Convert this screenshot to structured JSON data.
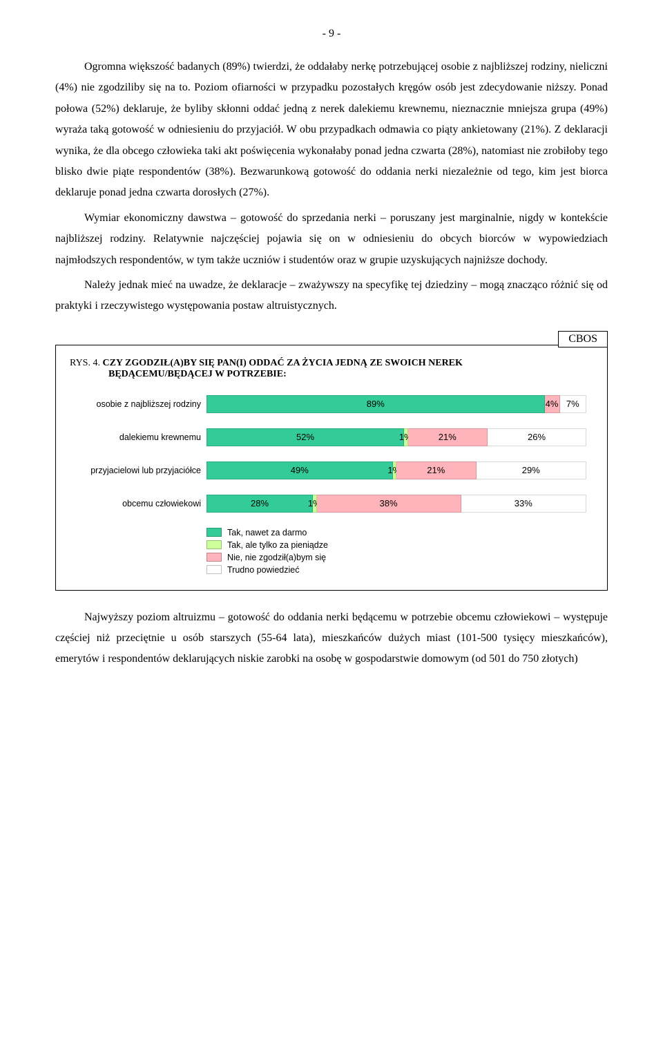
{
  "page_number": "- 9 -",
  "paragraphs": {
    "p1": "Ogromna większość badanych (89%) twierdzi, że oddałaby nerkę potrzebującej osobie z najbliższej rodziny, nieliczni (4%) nie zgodziliby się na to. Poziom ofiarności w przypadku pozostałych kręgów osób jest zdecydowanie niższy. Ponad połowa (52%) deklaruje, że byliby skłonni oddać jedną z nerek dalekiemu krewnemu, nieznacznie mniejsza grupa (49%) wyraża taką gotowość w odniesieniu do przyjaciół. W obu przypadkach odmawia co piąty ankietowany (21%). Z deklaracji wynika, że dla obcego człowieka taki akt poświęcenia wykonałaby ponad jedna czwarta (28%), natomiast nie zrobiłoby tego blisko dwie piąte respondentów (38%). Bezwarunkową gotowość do oddania nerki niezależnie od tego, kim jest biorca deklaruje ponad jedna czwarta dorosłych (27%).",
    "p2": "Wymiar ekonomiczny dawstwa – gotowość do sprzedania nerki – poruszany jest marginalnie, nigdy w kontekście najbliższej rodziny. Relatywnie najczęściej pojawia się on w odniesieniu do obcych biorców w wypowiedziach najmłodszych respondentów, w tym także uczniów i studentów oraz w grupie uzyskujących najniższe dochody.",
    "p3": "Należy jednak mieć na uwadze, że deklaracje – zważywszy na specyfikę tej dziedziny – mogą znacząco różnić się od praktyki i rzeczywistego występowania postaw altruistycznych.",
    "p4": "Najwyższy poziom altruizmu – gotowość do oddania nerki będącemu w potrzebie obcemu człowiekowi – występuje częściej niż przeciętnie u osób starszych (55-64 lata), mieszkańców dużych miast (101-500 tysięcy mieszkańców), emerytów i respondentów deklarujących niskie zarobki na osobę w gospodarstwie domowym (od 501 do 750 złotych)"
  },
  "figure": {
    "cbos": "CBOS",
    "rys": "RYS. 4. ",
    "title_bold1": "CZY ZGODZIŁ(A)BY SIĘ PAN(I) ODDAĆ ZA ŻYCIA JEDNĄ ZE SWOICH NEREK",
    "title_bold2": "BĘDĄCEMU/BĘDĄCEJ W POTRZEBIE:",
    "colors": {
      "yes_free": "#33cc99",
      "yes_money": "#ccff99",
      "no": "#ffb3ba",
      "dk": "#ffffff"
    },
    "rows": [
      {
        "label": "osobie z najbliższej rodziny",
        "segments": [
          {
            "key": "yes_free",
            "value": 89,
            "text": "89%"
          },
          {
            "key": "no",
            "value": 4,
            "text": "4%"
          },
          {
            "key": "dk",
            "value": 7,
            "text": "7%"
          }
        ]
      },
      {
        "label": "dalekiemu krewnemu",
        "segments": [
          {
            "key": "yes_free",
            "value": 52,
            "text": "52%"
          },
          {
            "key": "yes_money",
            "value": 1,
            "text": "1%"
          },
          {
            "key": "no",
            "value": 21,
            "text": "21%"
          },
          {
            "key": "dk",
            "value": 26,
            "text": "26%"
          }
        ]
      },
      {
        "label": "przyjacielowi lub przyjaciółce",
        "segments": [
          {
            "key": "yes_free",
            "value": 49,
            "text": "49%"
          },
          {
            "key": "yes_money",
            "value": 1,
            "text": "1%"
          },
          {
            "key": "no",
            "value": 21,
            "text": "21%"
          },
          {
            "key": "dk",
            "value": 29,
            "text": "29%"
          }
        ]
      },
      {
        "label": "obcemu człowiekowi",
        "segments": [
          {
            "key": "yes_free",
            "value": 28,
            "text": "28%"
          },
          {
            "key": "yes_money",
            "value": 1,
            "text": "1%"
          },
          {
            "key": "no",
            "value": 38,
            "text": "38%"
          },
          {
            "key": "dk",
            "value": 33,
            "text": "33%"
          }
        ]
      }
    ],
    "legend": [
      {
        "key": "yes_free",
        "label": "Tak, nawet za darmo"
      },
      {
        "key": "yes_money",
        "label": "Tak, ale tylko za pieniądze"
      },
      {
        "key": "no",
        "label": "Nie, nie zgodził(a)bym się"
      },
      {
        "key": "dk",
        "label": "Trudno powiedzieć"
      }
    ]
  }
}
